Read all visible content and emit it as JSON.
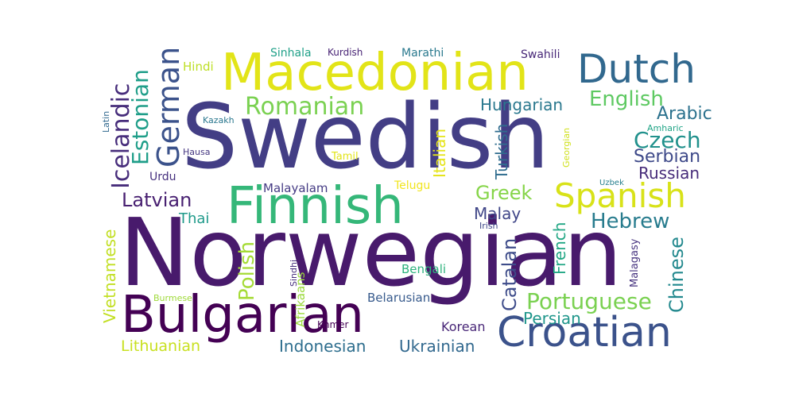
{
  "words": [
    {
      "text": "Norwegian",
      "color": "#481a6c"
    },
    {
      "text": "Swedish",
      "color": "#433e85"
    },
    {
      "text": "Macedonian",
      "color": "#e2e418"
    },
    {
      "text": "Finnish",
      "color": "#35b779"
    },
    {
      "text": "Bulgarian",
      "color": "#440154"
    },
    {
      "text": "Croatian",
      "color": "#3b528b"
    },
    {
      "text": "Dutch",
      "color": "#31688e"
    },
    {
      "text": "Spanish",
      "color": "#d8e219"
    },
    {
      "text": "Romanian",
      "color": "#7ad151"
    },
    {
      "text": "Portuguese",
      "color": "#7ad151"
    },
    {
      "text": "German",
      "color": "#3b528b"
    },
    {
      "text": "Icelandic",
      "color": "#472d7b"
    },
    {
      "text": "Estonian",
      "color": "#1f9e89"
    },
    {
      "text": "English",
      "color": "#5ec962"
    },
    {
      "text": "Hungarian",
      "color": "#2a788e"
    },
    {
      "text": "Czech",
      "color": "#21918c"
    },
    {
      "text": "Arabic",
      "color": "#2c728e"
    },
    {
      "text": "Serbian",
      "color": "#3e4989"
    },
    {
      "text": "Russian",
      "color": "#472c7a"
    },
    {
      "text": "Hebrew",
      "color": "#287c8e"
    },
    {
      "text": "Greek",
      "color": "#86d549"
    },
    {
      "text": "Latvian",
      "color": "#482071"
    },
    {
      "text": "Polish",
      "color": "#a5db36"
    },
    {
      "text": "Italian",
      "color": "#e5e419"
    },
    {
      "text": "Turkish",
      "color": "#2f6c8e"
    },
    {
      "text": "Malay",
      "color": "#404688"
    },
    {
      "text": "Catalan",
      "color": "#3e4c8a"
    },
    {
      "text": "French",
      "color": "#22a785"
    },
    {
      "text": "Persian",
      "color": "#1f968b"
    },
    {
      "text": "Chinese",
      "color": "#23898e"
    },
    {
      "text": "Vietnamese",
      "color": "#c2df23"
    },
    {
      "text": "Indonesian",
      "color": "#2e6e8e"
    },
    {
      "text": "Ukrainian",
      "color": "#31688e"
    },
    {
      "text": "Lithuanian",
      "color": "#c8e020"
    },
    {
      "text": "Korean",
      "color": "#482677"
    },
    {
      "text": "Belarusian",
      "color": "#375a8c"
    },
    {
      "text": "Bengali",
      "color": "#2db27d"
    },
    {
      "text": "Thai",
      "color": "#1f9a8a"
    },
    {
      "text": "Malayalam",
      "color": "#443a83"
    },
    {
      "text": "Telugu",
      "color": "#f1e51d"
    },
    {
      "text": "Tamil",
      "color": "#e2e418"
    },
    {
      "text": "Urdu",
      "color": "#46307e"
    },
    {
      "text": "Hausa",
      "color": "#453781"
    },
    {
      "text": "Kazakh",
      "color": "#2a778e"
    },
    {
      "text": "Latin",
      "color": "#31688e"
    },
    {
      "text": "Hindi",
      "color": "#bddf26"
    },
    {
      "text": "Sinhala",
      "color": "#1fa088"
    },
    {
      "text": "Kurdish",
      "color": "#482475"
    },
    {
      "text": "Marathi",
      "color": "#29798e"
    },
    {
      "text": "Swahili",
      "color": "#482878"
    },
    {
      "text": "Georgian",
      "color": "#d0e11c"
    },
    {
      "text": "Amharic",
      "color": "#20a486"
    },
    {
      "text": "Uzbek",
      "color": "#277f8e"
    },
    {
      "text": "Irish",
      "color": "#3f4788"
    },
    {
      "text": "Malagasy",
      "color": "#46337f"
    },
    {
      "text": "Sindhi",
      "color": "#472e7c"
    },
    {
      "text": "Afrikaans",
      "color": "#9bd93c"
    },
    {
      "text": "Burmese",
      "color": "#9fda3a"
    },
    {
      "text": "Khmer",
      "color": "#440154"
    }
  ]
}
